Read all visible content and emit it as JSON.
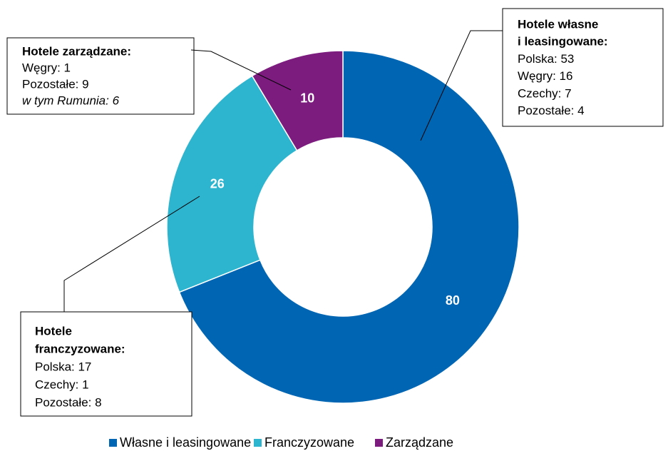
{
  "chart_data": {
    "type": "donut",
    "series": [
      {
        "name": "Własne i leasingowane",
        "color": "#0066b3",
        "value": 80
      },
      {
        "name": "Franczyzowane",
        "color": "#2db5d0",
        "value": 26
      },
      {
        "name": "Zarządzane",
        "color": "#7b1c7e",
        "value": 10
      }
    ],
    "annotations": [
      {
        "title": [
          "Hotele zarządzane:"
        ],
        "lines": [
          "Węgry: 1",
          "Pozostałe: 9"
        ],
        "italic_lines": [
          "w tym Rumunia: 6"
        ]
      },
      {
        "title": [
          "Hotele własne",
          "i leasingowane:"
        ],
        "lines": [
          "Polska: 53",
          "Węgry: 16",
          "Czechy: 7",
          "Pozostałe: 4"
        ],
        "italic_lines": []
      },
      {
        "title": [
          "Hotele",
          "franczyzowane:"
        ],
        "lines": [
          "Polska: 17",
          "Czechy: 1",
          "Pozostałe: 8"
        ],
        "italic_lines": []
      }
    ],
    "legend": "bottom"
  }
}
